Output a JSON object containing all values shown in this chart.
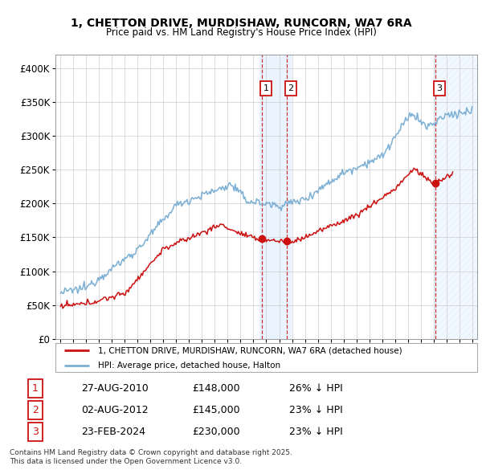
{
  "title_line1": "1, CHETTON DRIVE, MURDISHAW, RUNCORN, WA7 6RA",
  "title_line2": "Price paid vs. HM Land Registry's House Price Index (HPI)",
  "ylim": [
    0,
    420000
  ],
  "yticks": [
    0,
    50000,
    100000,
    150000,
    200000,
    250000,
    300000,
    350000,
    400000
  ],
  "ytick_labels": [
    "£0",
    "£50K",
    "£100K",
    "£150K",
    "£200K",
    "£250K",
    "£300K",
    "£350K",
    "£400K"
  ],
  "xlim_start": 1994.6,
  "xlim_end": 2027.4,
  "hpi_color": "#7BAFD4",
  "price_color": "#CC1111",
  "background_color": "#ffffff",
  "grid_color": "#cccccc",
  "sale_dates": [
    2010.654,
    2012.585,
    2024.143
  ],
  "sale_prices": [
    148000,
    145000,
    230000
  ],
  "sale_labels": [
    "1",
    "2",
    "3"
  ],
  "vline_colors": [
    "#CC1111",
    "#CC1111",
    "#CC1111"
  ],
  "shade_range_1": [
    2010.5,
    2012.9
  ],
  "shade_range_3": [
    2024.0,
    2027.4
  ],
  "shade_color": "#ddeeff",
  "footer_text": "Contains HM Land Registry data © Crown copyright and database right 2025.\nThis data is licensed under the Open Government Licence v3.0.",
  "table_data": [
    [
      "1",
      "27-AUG-2010",
      "£148,000",
      "26% ↓ HPI"
    ],
    [
      "2",
      "02-AUG-2012",
      "£145,000",
      "23% ↓ HPI"
    ],
    [
      "3",
      "23-FEB-2024",
      "£230,000",
      "23% ↓ HPI"
    ]
  ],
  "legend_line1": "1, CHETTON DRIVE, MURDISHAW, RUNCORN, WA7 6RA (detached house)",
  "legend_line2": "HPI: Average price, detached house, Halton"
}
